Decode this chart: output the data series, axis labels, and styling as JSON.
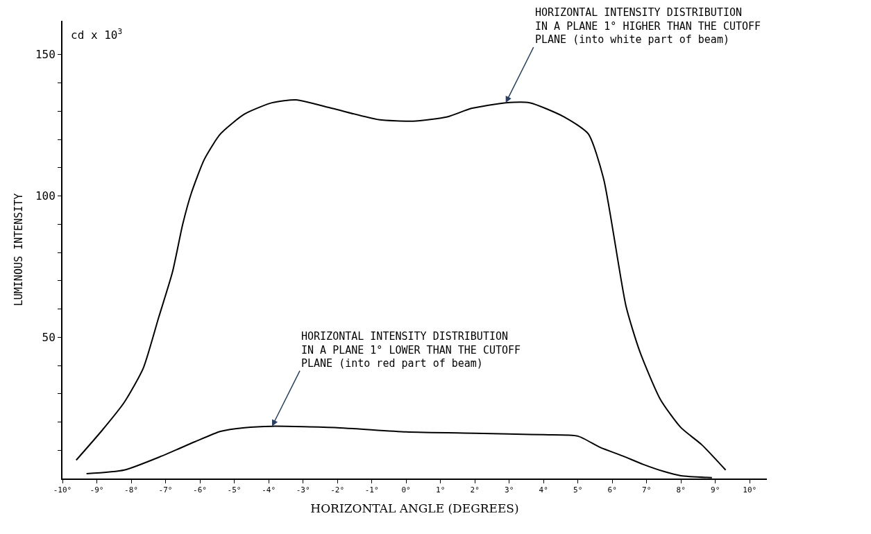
{
  "chart_data": {
    "type": "line",
    "xlabel": "HORIZONTAL ANGLE (DEGREES)",
    "ylabel": "LUMINOUS INTENSITY",
    "xlim": [
      -10,
      10.5
    ],
    "ylim": [
      0,
      162
    ],
    "xticks": [
      {
        "value": -10,
        "label": "-10°"
      },
      {
        "value": -9,
        "label": "-9°"
      },
      {
        "value": -8,
        "label": "-8°"
      },
      {
        "value": -7,
        "label": "-7°"
      },
      {
        "value": -6,
        "label": "-6°"
      },
      {
        "value": -5,
        "label": "-5°"
      },
      {
        "value": -4,
        "label": "-4°"
      },
      {
        "value": -3,
        "label": "-3°"
      },
      {
        "value": -2,
        "label": "-2°"
      },
      {
        "value": -1,
        "label": "-1°"
      },
      {
        "value": 0,
        "label": "0°"
      },
      {
        "value": 1,
        "label": "1°"
      },
      {
        "value": 2,
        "label": "2°"
      },
      {
        "value": 3,
        "label": "3°"
      },
      {
        "value": 4,
        "label": "4°"
      },
      {
        "value": 5,
        "label": "5°"
      },
      {
        "value": 6,
        "label": "6°"
      },
      {
        "value": 7,
        "label": "7°"
      },
      {
        "value": 8,
        "label": "8°"
      },
      {
        "value": 9,
        "label": "9°"
      },
      {
        "value": 10,
        "label": "10°"
      }
    ],
    "yticks": [
      {
        "value": 10,
        "label": null
      },
      {
        "value": 20,
        "label": null
      },
      {
        "value": 30,
        "label": null
      },
      {
        "value": 40,
        "label": null
      },
      50,
      {
        "value": 60,
        "label": null
      },
      {
        "value": 70,
        "label": null
      },
      {
        "value": 80,
        "label": null
      },
      {
        "value": 90,
        "label": null
      },
      100,
      {
        "value": 110,
        "label": null
      },
      {
        "value": 120,
        "label": null
      },
      {
        "value": 130,
        "label": null
      },
      {
        "value": 140,
        "label": null
      },
      150
    ],
    "marker": "none",
    "line_style": "solid",
    "series": [
      {
        "color": "#000000",
        "x": [
          -9.6,
          -8.85,
          -8.2,
          -7.65,
          -7.2,
          -6.8,
          -6.5,
          -6.25,
          -5.87,
          -5.4,
          -4.7,
          -3.9,
          -3.2,
          -2.15,
          -0.8,
          0.2,
          1.2,
          1.9,
          2.9,
          3.6,
          4.6,
          5.3,
          5.75,
          6.4,
          6.8,
          7.4,
          8.0,
          8.6,
          9.3
        ],
        "values": [
          6.5,
          17,
          27,
          39,
          57,
          73,
          90,
          101,
          113,
          122,
          129,
          133,
          134,
          131,
          127,
          126.5,
          128,
          131,
          133,
          133,
          128,
          122,
          106,
          61,
          45,
          28,
          18,
          12,
          3
        ]
      },
      {
        "color": "#000000",
        "x": [
          -9.3,
          -8.2,
          -7.1,
          -6.15,
          -5.4,
          -4.7,
          -3.9,
          -2,
          0,
          2,
          4,
          5.0,
          5.65,
          6.3,
          6.9,
          7.5,
          8.0,
          8.9
        ],
        "values": [
          1.7,
          3,
          8,
          13,
          16.7,
          18,
          18.5,
          18,
          16.5,
          16,
          15.5,
          15,
          11,
          8,
          5,
          2.5,
          1,
          0.3
        ]
      }
    ],
    "annotations": [
      "cd x 10$^{3}$",
      {
        "text": "HORIZONTAL INTENSITY DISTRIBUTION\nIN A PLANE 1° HIGHER THAN THE CUTOFF\nPLANE (into white part of beam)",
        "x": 2.9,
        "y": 133
      },
      {
        "text": "HORIZONTAL INTENSITY DISTRIBUTION\nIN A PLANE 1° LOWER THAN THE CUTOFF\nPLANE (into red part of beam)",
        "x": -3.9,
        "y": 18.5
      }
    ]
  }
}
